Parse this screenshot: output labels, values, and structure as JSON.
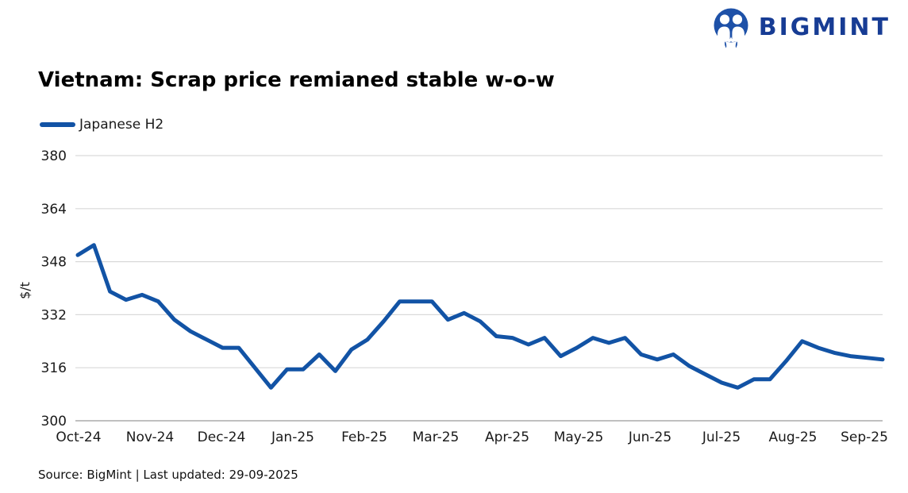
{
  "brand": {
    "name": "BIGMINT"
  },
  "header": {
    "title": "Vietnam: Scrap price remianed stable w-o-w"
  },
  "legend": {
    "label": "Japanese H2"
  },
  "y_axis": {
    "unit": "$/t"
  },
  "footer": {
    "source": "Source: BigMint | Last updated: 29-09-2025"
  },
  "colors": {
    "line": "#1253A5",
    "logo_text": "#173C94",
    "logo_icon": "#1E51A8",
    "grid": "#D9D9D9",
    "axis": "#ABABAB",
    "tick_text": "#1a1a1a"
  },
  "chart_data": {
    "type": "line",
    "title": "Vietnam: Scrap price remianed stable w-o-w",
    "ylabel": "$/t",
    "xlabel": "",
    "ylim": [
      300,
      380
    ],
    "yticks": [
      300,
      316,
      332,
      348,
      364,
      380
    ],
    "grid": "horizontal",
    "legend_position": "top-left",
    "x_tick_labels": [
      "Oct-24",
      "Nov-24",
      "Dec-24",
      "Jan-25",
      "Feb-25",
      "Mar-25",
      "Apr-25",
      "May-25",
      "Jun-25",
      "Jul-25",
      "Aug-25",
      "Sep-25"
    ],
    "x_frequency": "weekly",
    "series": [
      {
        "name": "Japanese H2",
        "color": "#1253A5",
        "values": [
          350,
          353,
          339,
          336.5,
          338,
          336,
          330.5,
          327,
          324.5,
          322,
          322,
          316,
          310,
          315.5,
          315.5,
          320,
          315,
          321.5,
          324.5,
          330,
          336,
          336,
          336,
          330.5,
          332.5,
          330,
          325.5,
          325,
          323,
          325,
          319.5,
          322,
          325,
          323.5,
          325,
          320,
          318.5,
          320,
          316.5,
          314,
          311.5,
          310,
          312.5,
          312.5,
          318,
          324,
          322,
          320.5,
          319.5,
          319,
          318.5
        ]
      }
    ]
  }
}
